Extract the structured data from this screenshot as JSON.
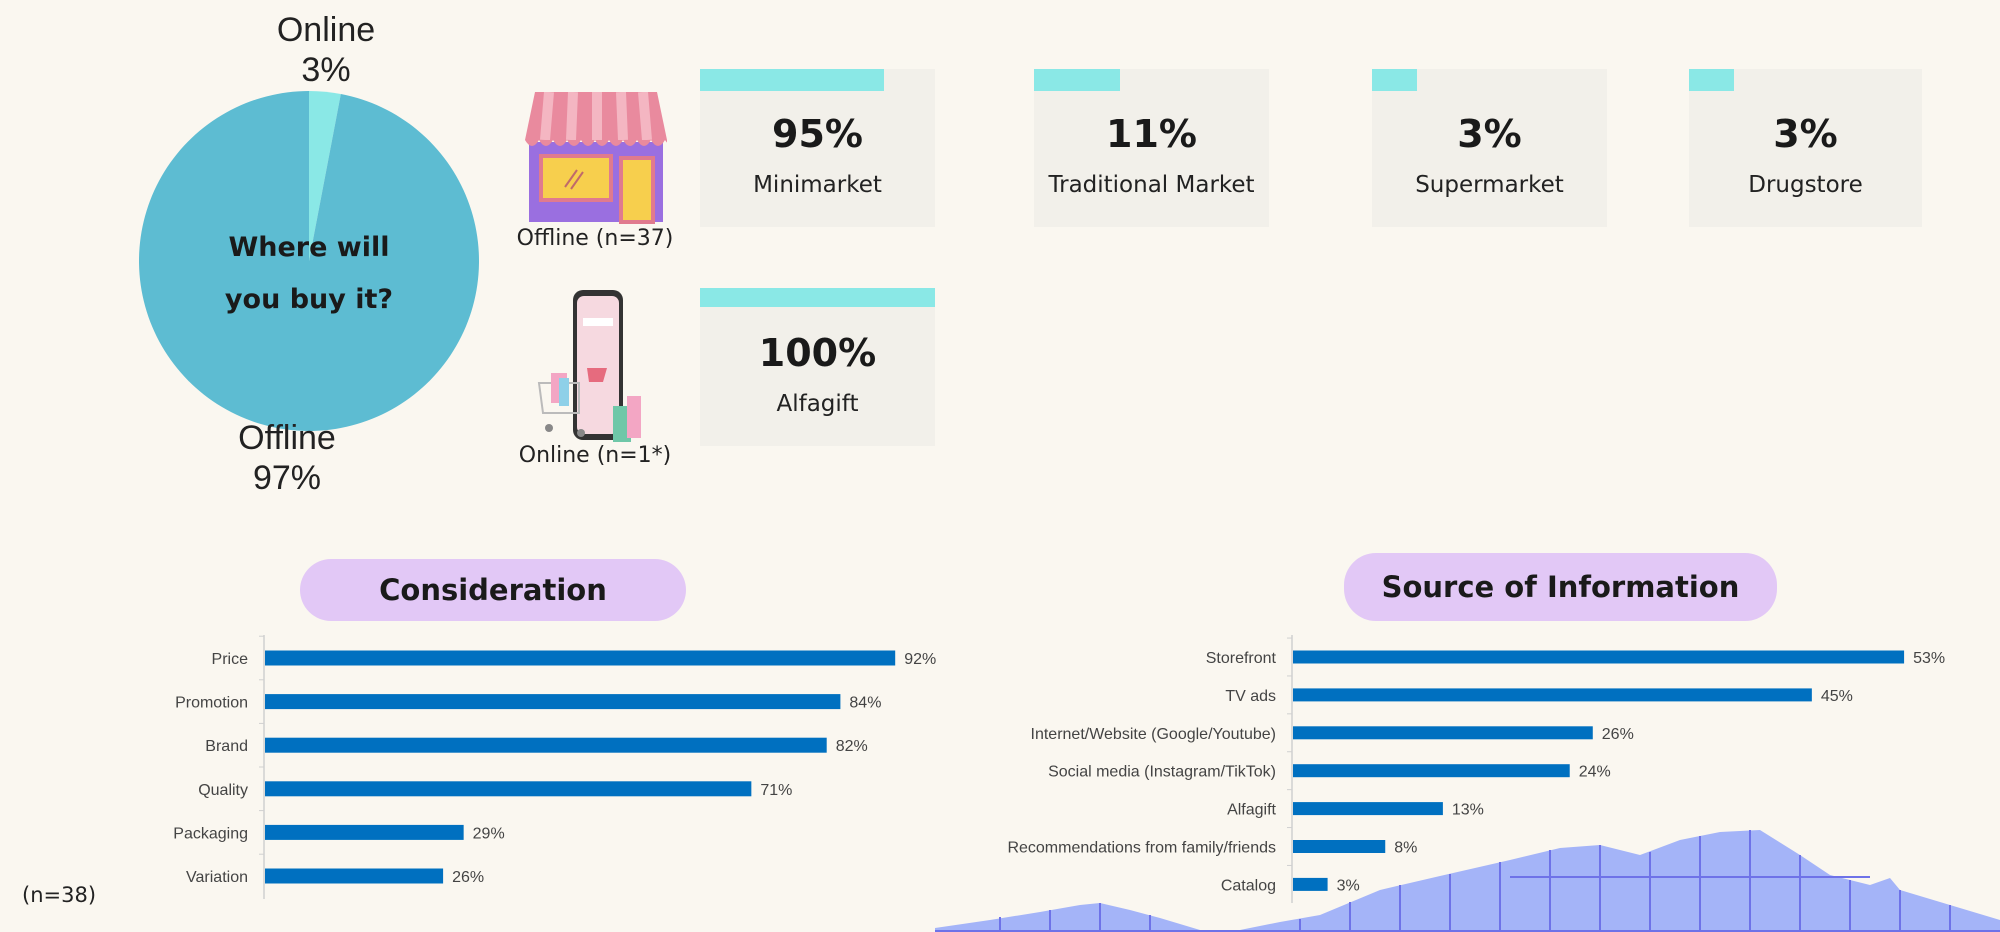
{
  "pie": {
    "title": "Where will you buy it?",
    "title_lines": [
      "Where will",
      "you buy it?"
    ],
    "slices": [
      {
        "name": "Online",
        "value": 3,
        "label": "3%",
        "color": "#8ae8e6"
      },
      {
        "name": "Offline",
        "value": 97,
        "label": "97%",
        "color": "#5dbcd2"
      }
    ]
  },
  "offline": {
    "icon": "storefront-icon",
    "label": "Offline (n=37)",
    "cards": [
      {
        "value": 95,
        "pct": "95%",
        "label": "Minimarket"
      },
      {
        "value": 11,
        "pct": "11%",
        "label": "Traditional Market"
      },
      {
        "value": 3,
        "pct": "3%",
        "label": "Supermarket"
      },
      {
        "value": 3,
        "pct": "3%",
        "label": "Drugstore"
      }
    ]
  },
  "online": {
    "icon": "phone-shopping-icon",
    "label": "Online (n=1*)",
    "cards": [
      {
        "value": 100,
        "pct": "100%",
        "label": "Alfagift"
      }
    ]
  },
  "colors": {
    "background": "#faf7f0",
    "card": "#f2f0ea",
    "accent": "#8ae8e6",
    "bar": "#0070c0",
    "pill": "#e2c8f6"
  },
  "sample_note": "(n=38)",
  "chart_data": [
    {
      "type": "bar",
      "orientation": "horizontal",
      "title": "Consideration",
      "categories": [
        "Price",
        "Promotion",
        "Brand",
        "Quality",
        "Packaging",
        "Variation"
      ],
      "values": [
        92,
        84,
        82,
        71,
        29,
        26
      ],
      "data_labels": [
        "92%",
        "84%",
        "82%",
        "71%",
        "29%",
        "26%"
      ],
      "unit": "%",
      "grid": false
    },
    {
      "type": "bar",
      "orientation": "horizontal",
      "title": "Source of Information",
      "categories": [
        "Storefront",
        "TV ads",
        "Internet/Website (Google/Youtube)",
        "Social media (Instagram/TikTok)",
        "Alfagift",
        "Recommendations from family/friends",
        "Catalog"
      ],
      "values": [
        53,
        45,
        26,
        24,
        13,
        8,
        3
      ],
      "data_labels": [
        "53%",
        "45%",
        "26%",
        "24%",
        "13%",
        "8%",
        "3%"
      ],
      "unit": "%",
      "grid": false
    }
  ]
}
